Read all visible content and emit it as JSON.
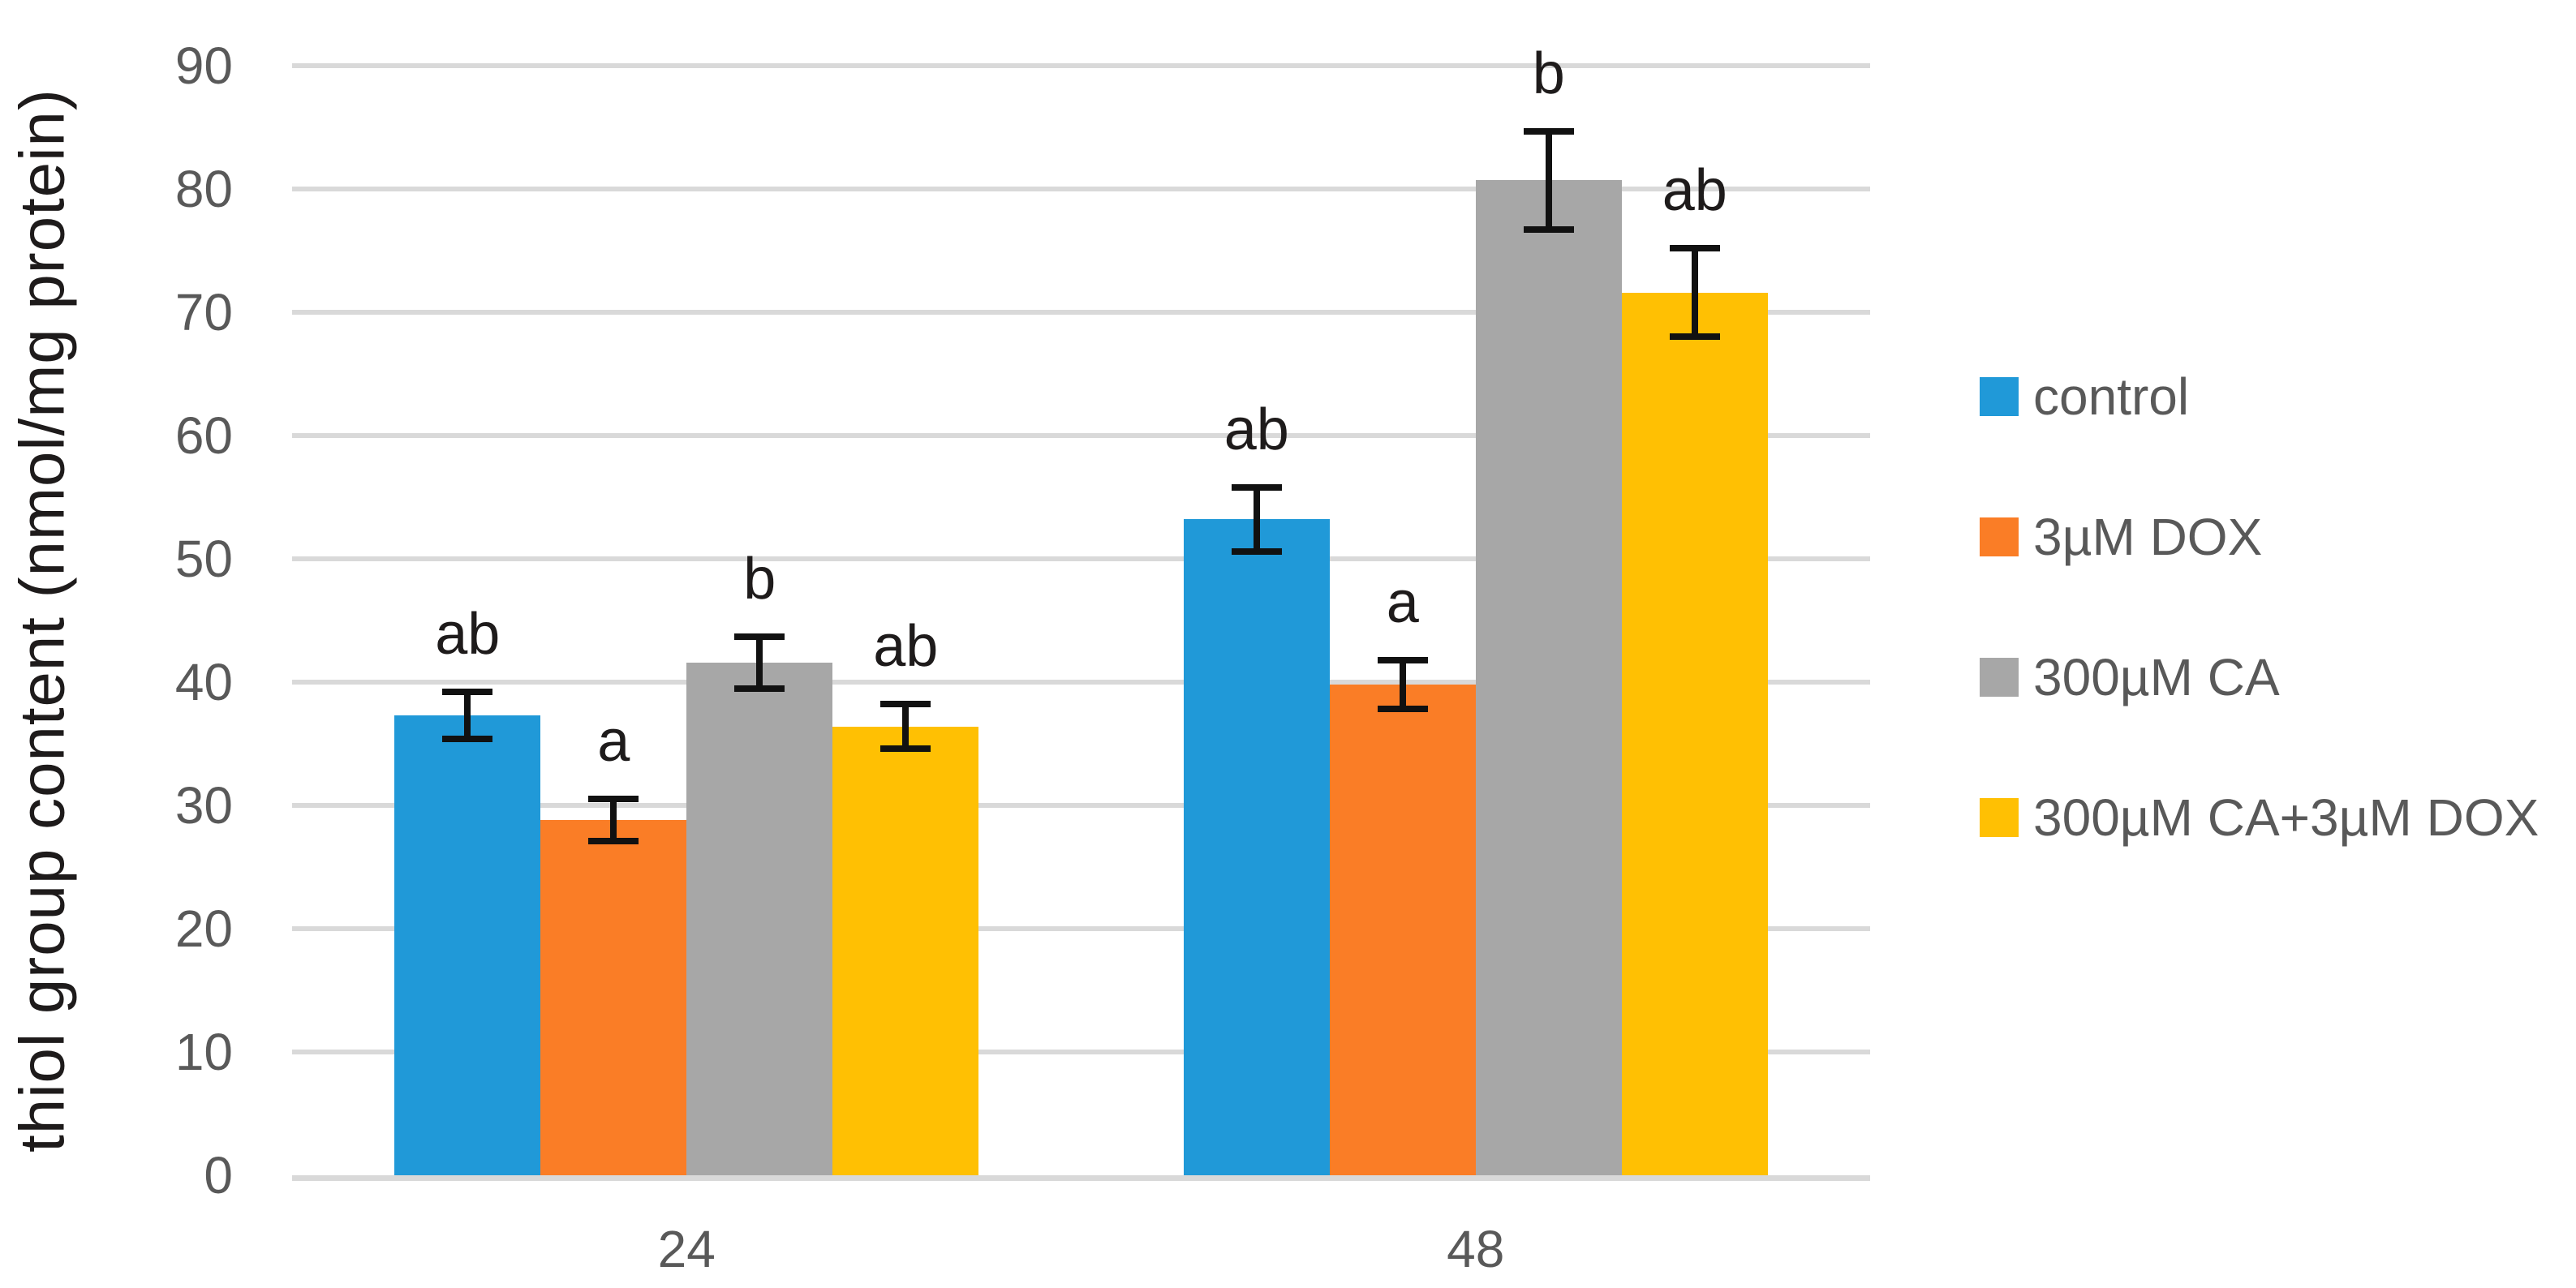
{
  "chart_data": {
    "type": "bar",
    "title": "",
    "ylabel": "thiol group content (nmol/mg protein)",
    "xlabel": "",
    "ylim": [
      0,
      90
    ],
    "ytick_step": 10,
    "ytick_labels": [
      "0",
      "10",
      "20",
      "30",
      "40",
      "50",
      "60",
      "70",
      "80",
      "90"
    ],
    "categories": [
      "24",
      "48"
    ],
    "series": [
      {
        "name": "control",
        "color": "#2099D8",
        "values": [
          37.3,
          53.2
        ],
        "errors": [
          1.9,
          2.6
        ],
        "letters": [
          "ab",
          "ab"
        ]
      },
      {
        "name": "3µM DOX",
        "color": "#FA7D26",
        "values": [
          28.8,
          39.8
        ],
        "errors": [
          1.7,
          2.0
        ],
        "letters": [
          "a",
          "a"
        ]
      },
      {
        "name": "300µM CA",
        "color": "#A7A7A7",
        "values": [
          41.6,
          80.7
        ],
        "errors": [
          2.1,
          4.0
        ],
        "letters": [
          "b",
          "b"
        ]
      },
      {
        "name": "300µM CA+3µM DOX",
        "color": "#FFC003",
        "values": [
          36.4,
          71.6
        ],
        "errors": [
          1.8,
          3.6
        ],
        "letters": [
          "ab",
          "ab"
        ]
      }
    ],
    "legend_position": "right",
    "grid": true,
    "colors": {
      "gridline": "#D9D9D9",
      "axis_line": "#D9D9D9",
      "tick_text": "#595959",
      "category_text": "#595959",
      "legend_text": "#595959",
      "axis_title_text": "#1E1B1B",
      "sig_letter_text": "#1E1B1B",
      "error_bar": "#111111",
      "background": "#FFFFFF"
    }
  }
}
